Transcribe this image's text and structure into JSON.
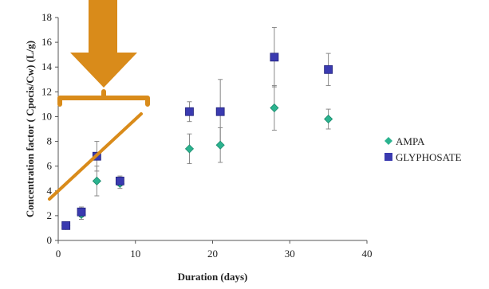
{
  "chart_data": {
    "type": "scatter",
    "xlabel": "Duration (days)",
    "ylabel": "Concentration factor ( Cpocis/Cw) (L/g)",
    "xlim": [
      0,
      40
    ],
    "ylim": [
      0,
      18
    ],
    "x_ticks": [
      "0",
      "10",
      "20",
      "30",
      "40"
    ],
    "y_ticks": [
      "0",
      "2",
      "4",
      "6",
      "8",
      "10",
      "12",
      "14",
      "16",
      "18"
    ],
    "grid": false,
    "legend_position": "right",
    "series": [
      {
        "name": "AMPA",
        "marker": "diamond",
        "color": "#2bb38f",
        "x": [
          1,
          3,
          5,
          8,
          17,
          21,
          28,
          35
        ],
        "y": [
          1.2,
          2.1,
          4.8,
          4.6,
          7.4,
          7.7,
          10.7,
          9.8
        ],
        "err": [
          0.3,
          0.4,
          1.2,
          0.4,
          1.2,
          1.4,
          1.8,
          0.8
        ]
      },
      {
        "name": "GLYPHOSATE",
        "marker": "square",
        "color": "#3a3ab0",
        "x": [
          1,
          3,
          5,
          8,
          17,
          21,
          28,
          35
        ],
        "y": [
          1.2,
          2.3,
          6.8,
          4.8,
          10.4,
          10.4,
          14.8,
          13.8
        ],
        "err": [
          0.3,
          0.4,
          1.2,
          0.4,
          0.8,
          2.6,
          2.4,
          1.3
        ]
      }
    ],
    "annotations": {
      "color": "#d98b1a",
      "shapes": [
        "down-arrow",
        "bracket",
        "diagonal-line"
      ]
    }
  }
}
